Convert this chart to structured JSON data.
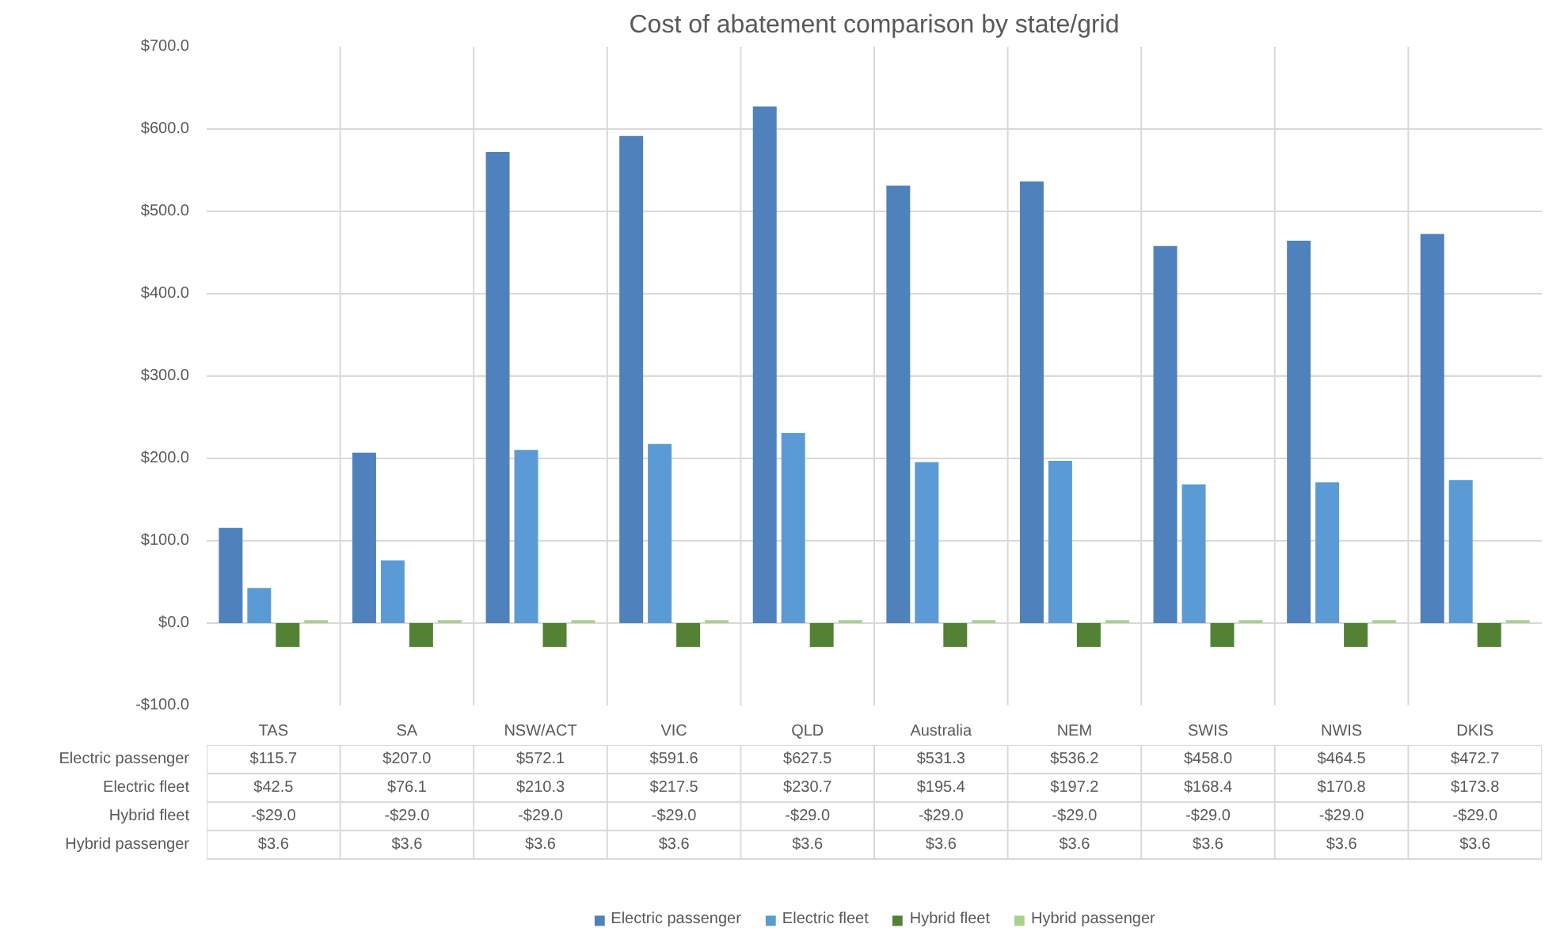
{
  "chart_data": {
    "type": "bar",
    "title": "Cost of abatement comparison by state/grid",
    "categories": [
      "TAS",
      "SA",
      "NSW/ACT",
      "VIC",
      "QLD",
      "Australia",
      "NEM",
      "SWIS",
      "NWIS",
      "DKIS"
    ],
    "series": [
      {
        "name": "Electric passenger",
        "color": "#4f81bd",
        "values": [
          115.7,
          207.0,
          572.1,
          591.6,
          627.5,
          531.3,
          536.2,
          458.0,
          464.5,
          472.7
        ],
        "value_labels": [
          "$115.7",
          "$207.0",
          "$572.1",
          "$591.6",
          "$627.5",
          "$531.3",
          "$536.2",
          "$458.0",
          "$464.5",
          "$472.7"
        ]
      },
      {
        "name": "Electric fleet",
        "color": "#5b9bd5",
        "values": [
          42.5,
          76.1,
          210.3,
          217.5,
          230.7,
          195.4,
          197.2,
          168.4,
          170.8,
          173.8
        ],
        "value_labels": [
          "$42.5",
          "$76.1",
          "$210.3",
          "$217.5",
          "$230.7",
          "$195.4",
          "$197.2",
          "$168.4",
          "$170.8",
          "$173.8"
        ]
      },
      {
        "name": "Hybrid fleet",
        "color": "#548235",
        "values": [
          -29.0,
          -29.0,
          -29.0,
          -29.0,
          -29.0,
          -29.0,
          -29.0,
          -29.0,
          -29.0,
          -29.0
        ],
        "value_labels": [
          "-$29.0",
          "-$29.0",
          "-$29.0",
          "-$29.0",
          "-$29.0",
          "-$29.0",
          "-$29.0",
          "-$29.0",
          "-$29.0",
          "-$29.0"
        ]
      },
      {
        "name": "Hybrid passenger",
        "color": "#a9d18e",
        "values": [
          3.6,
          3.6,
          3.6,
          3.6,
          3.6,
          3.6,
          3.6,
          3.6,
          3.6,
          3.6
        ],
        "value_labels": [
          "$3.6",
          "$3.6",
          "$3.6",
          "$3.6",
          "$3.6",
          "$3.6",
          "$3.6",
          "$3.6",
          "$3.6",
          "$3.6"
        ]
      }
    ],
    "ylim": [
      -100,
      700
    ],
    "yticks": [
      {
        "value": -100,
        "label": "-$100.0"
      },
      {
        "value": 0,
        "label": "$0.0"
      },
      {
        "value": 100,
        "label": "$100.0"
      },
      {
        "value": 200,
        "label": "$200.0"
      },
      {
        "value": 300,
        "label": "$300.0"
      },
      {
        "value": 400,
        "label": "$400.0"
      },
      {
        "value": 500,
        "label": "$500.0"
      },
      {
        "value": 600,
        "label": "$600.0"
      },
      {
        "value": 700,
        "label": "$700.0"
      }
    ],
    "grid": "y",
    "legend": "bottom"
  }
}
